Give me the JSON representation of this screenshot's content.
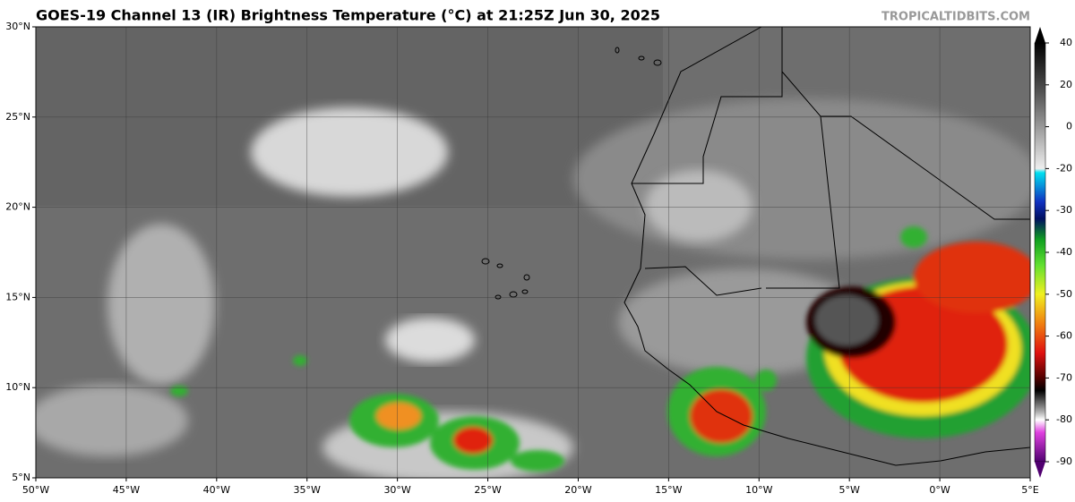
{
  "header": {
    "title": "GOES-19 Channel 13 (IR) Brightness Temperature (°C) at 21:25Z Jun 30, 2025",
    "source": "TROPICALTIDBITS.COM"
  },
  "map": {
    "lonlim": [
      -50,
      5
    ],
    "latlim": [
      5,
      30
    ],
    "lon_ticks": [
      {
        "value": -50,
        "label": "50°W"
      },
      {
        "value": -45,
        "label": "45°W"
      },
      {
        "value": -40,
        "label": "40°W"
      },
      {
        "value": -35,
        "label": "35°W"
      },
      {
        "value": -30,
        "label": "30°W"
      },
      {
        "value": -25,
        "label": "25°W"
      },
      {
        "value": -20,
        "label": "20°W"
      },
      {
        "value": -15,
        "label": "15°W"
      },
      {
        "value": -10,
        "label": "10°W"
      },
      {
        "value": -5,
        "label": "5°W"
      },
      {
        "value": 0,
        "label": "0°W"
      },
      {
        "value": 5,
        "label": "5°E"
      }
    ],
    "lat_ticks": [
      {
        "value": 30,
        "label": "30°N"
      },
      {
        "value": 25,
        "label": "25°N"
      },
      {
        "value": 20,
        "label": "20°N"
      },
      {
        "value": 15,
        "label": "15°N"
      },
      {
        "value": 10,
        "label": "10°N"
      },
      {
        "value": 5,
        "label": "5°N"
      }
    ]
  },
  "colorbar": {
    "ticks": [
      40,
      20,
      0,
      -20,
      -30,
      -40,
      -50,
      -60,
      -70,
      -80,
      -90
    ]
  }
}
